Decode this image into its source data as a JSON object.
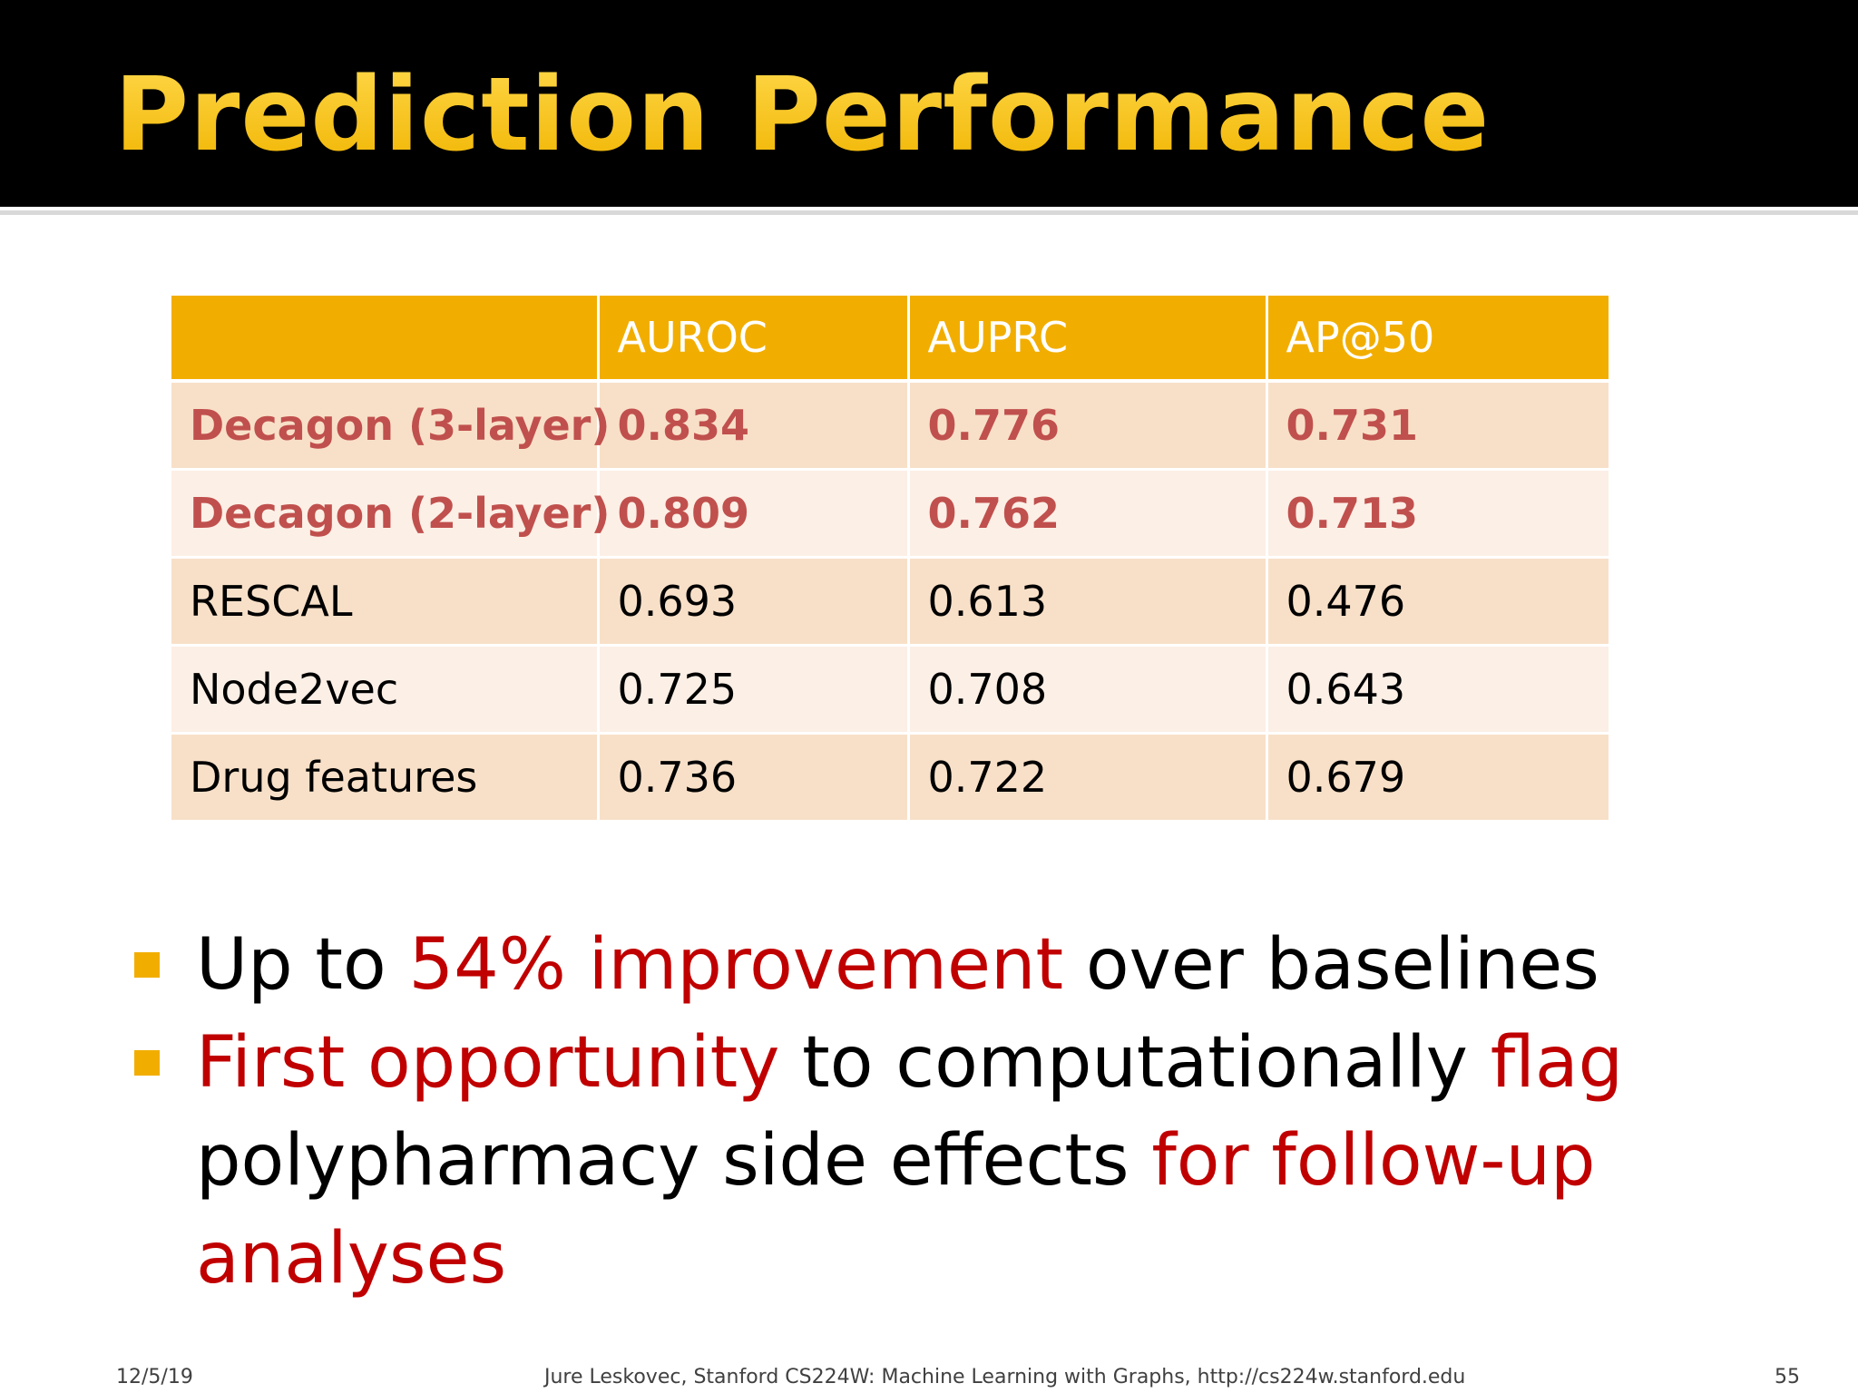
{
  "slide": {
    "title": "Prediction Performance",
    "accent_color": "#f2ae00",
    "highlight_color": "#c0504d",
    "emphasis_color": "#c00000"
  },
  "table": {
    "headers": [
      "",
      "AUROC",
      "AUPRC",
      "AP@50"
    ],
    "rows": [
      {
        "method": "Decagon (3-layer)",
        "auroc": "0.834",
        "auprc": "0.776",
        "ap50": "0.731",
        "highlight": true
      },
      {
        "method": "Decagon (2-layer)",
        "auroc": "0.809",
        "auprc": "0.762",
        "ap50": "0.713",
        "highlight": true
      },
      {
        "method": "RESCAL",
        "auroc": "0.693",
        "auprc": "0.613",
        "ap50": "0.476",
        "highlight": false
      },
      {
        "method": "Node2vec",
        "auroc": "0.725",
        "auprc": "0.708",
        "ap50": "0.643",
        "highlight": false
      },
      {
        "method": "Drug features",
        "auroc": "0.736",
        "auprc": "0.722",
        "ap50": "0.679",
        "highlight": false
      }
    ]
  },
  "bullets": [
    {
      "segments": [
        {
          "text": "Up to ",
          "red": false
        },
        {
          "text": "54% improvement",
          "red": true
        },
        {
          "text": " over baselines",
          "red": false
        }
      ]
    },
    {
      "segments": [
        {
          "text": "First opportunity",
          "red": true
        },
        {
          "text": " to computationally ",
          "red": false
        },
        {
          "text": "flag",
          "red": true
        },
        {
          "text": " polypharmacy side effects ",
          "red": false
        },
        {
          "text": "for follow-up analyses",
          "red": true
        }
      ]
    }
  ],
  "footer": {
    "date": "12/5/19",
    "credit": "Jure Leskovec, Stanford CS224W: Machine Learning with Graphs, http://cs224w.stanford.edu",
    "page_number": "55"
  }
}
